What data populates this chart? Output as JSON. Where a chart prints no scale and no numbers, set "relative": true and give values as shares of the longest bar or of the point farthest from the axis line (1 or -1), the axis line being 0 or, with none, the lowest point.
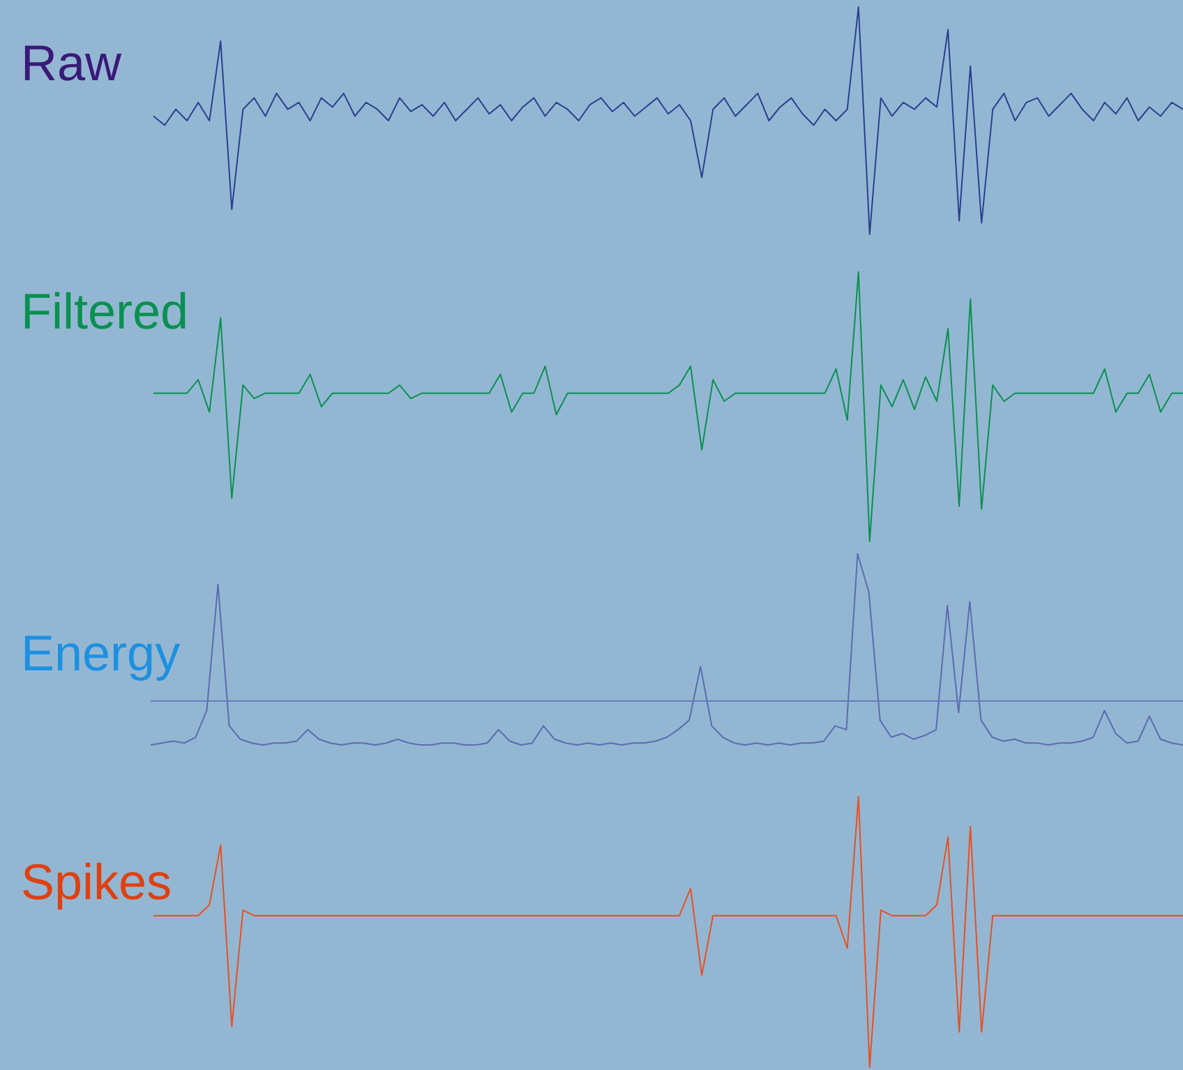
{
  "chart_data": [
    {
      "type": "line",
      "title": "Raw",
      "relative": true,
      "tick_labels": false,
      "marker": "none",
      "categories": [
        null,
        null,
        null,
        null,
        null,
        null,
        null,
        null,
        null,
        null,
        null,
        null,
        null,
        null,
        null,
        null,
        null,
        null,
        null,
        null,
        null,
        null,
        null,
        null,
        null,
        null,
        null,
        null,
        null,
        null,
        null,
        null,
        null,
        null,
        null,
        null,
        null,
        null,
        null,
        null,
        null,
        null,
        null,
        null,
        null,
        null,
        null,
        null,
        null,
        null,
        null,
        null,
        null,
        null,
        null,
        null,
        null,
        null,
        null,
        null,
        null,
        null,
        null,
        null,
        null,
        null,
        null,
        null,
        null,
        null,
        null,
        null,
        null,
        null,
        null,
        null,
        null,
        null,
        null,
        null,
        null,
        null,
        null,
        null,
        null,
        null,
        null,
        null,
        null,
        null,
        null,
        null,
        null
      ],
      "series": [
        {
          "color": "#2a3f8f",
          "values": [
            0.52,
            0.48,
            0.55,
            0.5,
            0.58,
            0.5,
            0.85,
            0.11,
            0.55,
            0.6,
            0.52,
            0.62,
            0.55,
            0.58,
            0.5,
            0.6,
            0.56,
            0.62,
            0.52,
            0.58,
            0.55,
            0.5,
            0.6,
            0.54,
            0.57,
            0.52,
            0.58,
            0.5,
            0.55,
            0.6,
            0.53,
            0.57,
            0.5,
            0.56,
            0.6,
            0.52,
            0.58,
            0.55,
            0.5,
            0.57,
            0.6,
            0.54,
            0.58,
            0.52,
            0.56,
            0.6,
            0.53,
            0.57,
            0.5,
            0.25,
            0.55,
            0.6,
            0.52,
            0.57,
            0.62,
            0.5,
            0.56,
            0.6,
            0.53,
            0.48,
            0.55,
            0.5,
            0.55,
            1.0,
            0.0,
            0.6,
            0.52,
            0.58,
            0.55,
            0.6,
            0.56,
            0.9,
            0.06,
            0.74,
            0.05,
            0.55,
            0.62,
            0.5,
            0.58,
            0.6,
            0.52,
            0.57,
            0.62,
            0.55,
            0.5,
            0.58,
            0.53,
            0.6,
            0.5,
            0.56,
            0.52,
            0.58,
            0.55
          ]
        }
      ]
    },
    {
      "type": "line",
      "title": "Filtered",
      "relative": true,
      "tick_labels": false,
      "marker": "none",
      "categories": [
        null,
        null,
        null,
        null,
        null,
        null,
        null,
        null,
        null,
        null,
        null,
        null,
        null,
        null,
        null,
        null,
        null,
        null,
        null,
        null,
        null,
        null,
        null,
        null,
        null,
        null,
        null,
        null,
        null,
        null,
        null,
        null,
        null,
        null,
        null,
        null,
        null,
        null,
        null,
        null,
        null,
        null,
        null,
        null,
        null,
        null,
        null,
        null,
        null,
        null,
        null,
        null,
        null,
        null,
        null,
        null,
        null,
        null,
        null,
        null,
        null,
        null,
        null,
        null,
        null,
        null,
        null,
        null,
        null,
        null,
        null,
        null,
        null,
        null,
        null,
        null,
        null,
        null,
        null,
        null,
        null,
        null,
        null,
        null,
        null,
        null,
        null,
        null,
        null,
        null,
        null,
        null,
        null
      ],
      "series": [
        {
          "color": "#0a9050",
          "values": [
            0.55,
            0.55,
            0.55,
            0.55,
            0.6,
            0.48,
            0.83,
            0.16,
            0.58,
            0.53,
            0.55,
            0.55,
            0.55,
            0.55,
            0.62,
            0.5,
            0.55,
            0.55,
            0.55,
            0.55,
            0.55,
            0.55,
            0.58,
            0.53,
            0.55,
            0.55,
            0.55,
            0.55,
            0.55,
            0.55,
            0.55,
            0.62,
            0.48,
            0.55,
            0.55,
            0.65,
            0.47,
            0.55,
            0.55,
            0.55,
            0.55,
            0.55,
            0.55,
            0.55,
            0.55,
            0.55,
            0.55,
            0.58,
            0.65,
            0.34,
            0.6,
            0.52,
            0.55,
            0.55,
            0.55,
            0.55,
            0.55,
            0.55,
            0.55,
            0.55,
            0.55,
            0.64,
            0.45,
            1.0,
            0.0,
            0.58,
            0.5,
            0.6,
            0.49,
            0.61,
            0.52,
            0.79,
            0.13,
            0.9,
            0.12,
            0.58,
            0.52,
            0.55,
            0.55,
            0.55,
            0.55,
            0.55,
            0.55,
            0.55,
            0.55,
            0.64,
            0.48,
            0.55,
            0.55,
            0.62,
            0.48,
            0.55,
            0.55
          ]
        }
      ]
    },
    {
      "type": "line",
      "title": "Energy",
      "relative": true,
      "tick_labels": false,
      "marker": "none",
      "categories": [
        null,
        null,
        null,
        null,
        null,
        null,
        null,
        null,
        null,
        null,
        null,
        null,
        null,
        null,
        null,
        null,
        null,
        null,
        null,
        null,
        null,
        null,
        null,
        null,
        null,
        null,
        null,
        null,
        null,
        null,
        null,
        null,
        null,
        null,
        null,
        null,
        null,
        null,
        null,
        null,
        null,
        null,
        null,
        null,
        null,
        null,
        null,
        null,
        null,
        null,
        null,
        null,
        null,
        null,
        null,
        null,
        null,
        null,
        null,
        null,
        null,
        null,
        null,
        null,
        null,
        null,
        null,
        null,
        null,
        null,
        null,
        null,
        null,
        null,
        null,
        null,
        null,
        null,
        null,
        null,
        null,
        null,
        null,
        null,
        null,
        null,
        null,
        null,
        null,
        null,
        null,
        null,
        null
      ],
      "ref_lines": [
        {
          "axis": "y",
          "value": 0.23,
          "color": "#6a78b8"
        }
      ],
      "series": [
        {
          "color": "#5b6bb0",
          "values": [
            0.0,
            0.01,
            0.02,
            0.01,
            0.04,
            0.18,
            0.84,
            0.1,
            0.03,
            0.01,
            0.0,
            0.01,
            0.01,
            0.02,
            0.08,
            0.03,
            0.01,
            0.0,
            0.01,
            0.01,
            0.0,
            0.01,
            0.03,
            0.01,
            0.0,
            0.0,
            0.01,
            0.01,
            0.0,
            0.0,
            0.01,
            0.08,
            0.02,
            0.0,
            0.01,
            0.1,
            0.03,
            0.01,
            0.0,
            0.01,
            0.0,
            0.01,
            0.0,
            0.01,
            0.01,
            0.02,
            0.04,
            0.08,
            0.13,
            0.41,
            0.1,
            0.04,
            0.01,
            0.0,
            0.01,
            0.0,
            0.01,
            0.0,
            0.01,
            0.01,
            0.02,
            0.1,
            0.08,
            1.0,
            0.8,
            0.13,
            0.04,
            0.06,
            0.03,
            0.05,
            0.08,
            0.73,
            0.17,
            0.75,
            0.13,
            0.04,
            0.02,
            0.03,
            0.01,
            0.01,
            0.0,
            0.01,
            0.01,
            0.02,
            0.04,
            0.18,
            0.06,
            0.01,
            0.02,
            0.15,
            0.03,
            0.01,
            0.0
          ]
        }
      ]
    },
    {
      "type": "line",
      "title": "Spikes",
      "relative": true,
      "tick_labels": false,
      "marker": "none",
      "categories": [
        null,
        null,
        null,
        null,
        null,
        null,
        null,
        null,
        null,
        null,
        null,
        null,
        null,
        null,
        null,
        null,
        null,
        null,
        null,
        null,
        null,
        null,
        null,
        null,
        null,
        null,
        null,
        null,
        null,
        null,
        null,
        null,
        null,
        null,
        null,
        null,
        null,
        null,
        null,
        null,
        null,
        null,
        null,
        null,
        null,
        null,
        null,
        null,
        null,
        null,
        null,
        null,
        null,
        null,
        null,
        null,
        null,
        null,
        null,
        null,
        null,
        null,
        null,
        null,
        null,
        null,
        null,
        null,
        null,
        null,
        null,
        null,
        null,
        null,
        null,
        null,
        null,
        null,
        null,
        null,
        null,
        null,
        null,
        null,
        null,
        null,
        null,
        null,
        null,
        null,
        null,
        null,
        null
      ],
      "series": [
        {
          "color": "#e85020",
          "values": [
            0.56,
            0.56,
            0.56,
            0.56,
            0.56,
            0.6,
            0.82,
            0.15,
            0.58,
            0.56,
            0.56,
            0.56,
            0.56,
            0.56,
            0.56,
            0.56,
            0.56,
            0.56,
            0.56,
            0.56,
            0.56,
            0.56,
            0.56,
            0.56,
            0.56,
            0.56,
            0.56,
            0.56,
            0.56,
            0.56,
            0.56,
            0.56,
            0.56,
            0.56,
            0.56,
            0.56,
            0.56,
            0.56,
            0.56,
            0.56,
            0.56,
            0.56,
            0.56,
            0.56,
            0.56,
            0.56,
            0.56,
            0.56,
            0.66,
            0.34,
            0.56,
            0.56,
            0.56,
            0.56,
            0.56,
            0.56,
            0.56,
            0.56,
            0.56,
            0.56,
            0.56,
            0.56,
            0.44,
            1.0,
            0.0,
            0.58,
            0.56,
            0.56,
            0.56,
            0.56,
            0.6,
            0.85,
            0.13,
            0.89,
            0.13,
            0.56,
            0.56,
            0.56,
            0.56,
            0.56,
            0.56,
            0.56,
            0.56,
            0.56,
            0.56,
            0.56,
            0.56,
            0.56,
            0.56,
            0.56,
            0.56,
            0.56,
            0.56
          ]
        }
      ]
    }
  ]
}
